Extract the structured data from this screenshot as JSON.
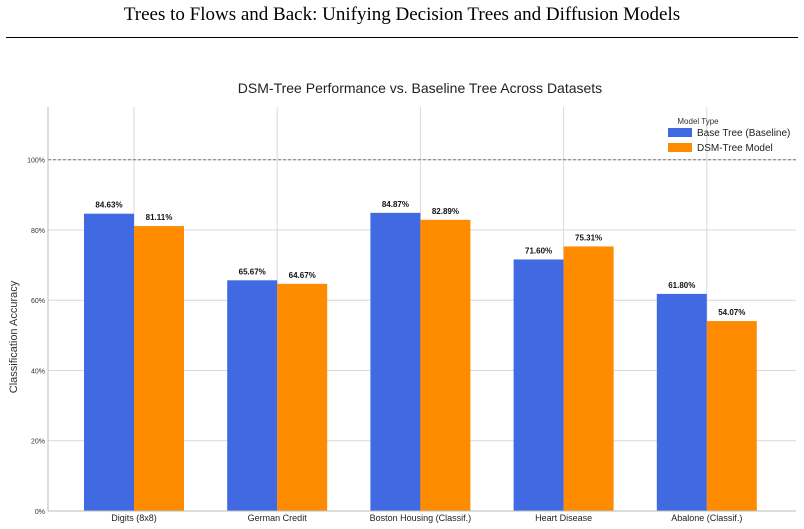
{
  "paper": {
    "running_title": "Trees to Flows and Back: Unifying Decision Trees and Diffusion Models"
  },
  "chart_data": {
    "type": "bar",
    "title": "DSM-Tree Performance vs. Baseline Tree Across Datasets",
    "xlabel": "",
    "ylabel": "Classification Accuracy",
    "ylim": [
      0,
      1.15
    ],
    "yticks": [
      0,
      0.2,
      0.4,
      0.6,
      0.8,
      1.0
    ],
    "ytick_labels": [
      "0%",
      "20%",
      "40%",
      "60%",
      "80%",
      "100%"
    ],
    "reference_line": 1.0,
    "grid": true,
    "legend": {
      "title": "Model Type",
      "placement": "top-right"
    },
    "categories": [
      "Digits (8x8)",
      "German Credit",
      "Boston Housing (Classif.)",
      "Heart Disease",
      "Abalone (Classif.)"
    ],
    "series": [
      {
        "name": "Base Tree (Baseline)",
        "color": "#4169e1",
        "values": [
          0.8463,
          0.6567,
          0.8487,
          0.716,
          0.618
        ],
        "labels": [
          "84.63%",
          "65.67%",
          "84.87%",
          "71.60%",
          "61.80%"
        ]
      },
      {
        "name": "DSM-Tree Model",
        "color": "#ff8c00",
        "values": [
          0.8111,
          0.6467,
          0.8289,
          0.7531,
          0.5407
        ],
        "labels": [
          "81.11%",
          "64.67%",
          "82.89%",
          "75.31%",
          "54.07%"
        ]
      }
    ]
  }
}
